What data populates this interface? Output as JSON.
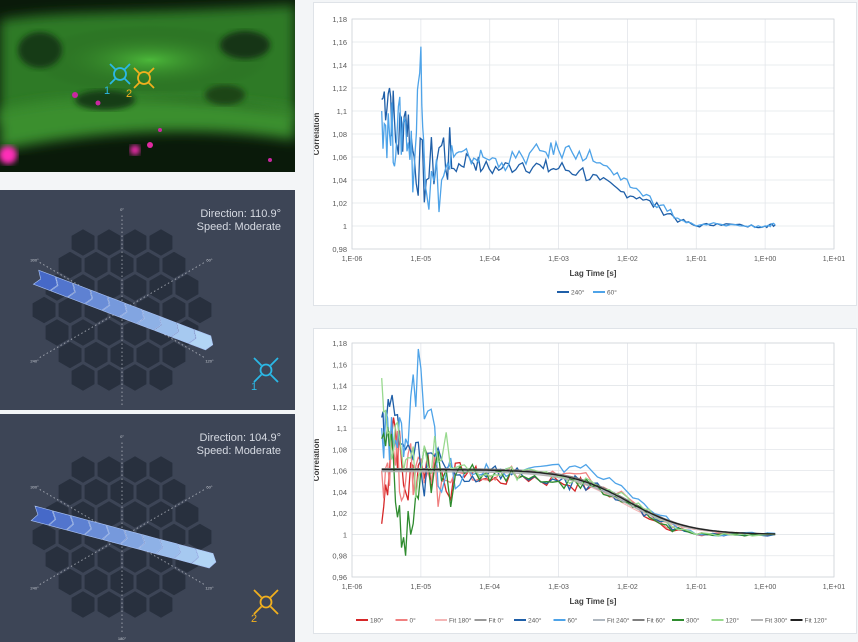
{
  "microscopy": {
    "marker1_label": "1",
    "marker2_label": "2",
    "marker1_color": "#2bb8e6",
    "marker2_color": "#f2b01e"
  },
  "direction_panels": [
    {
      "direction_text": "Direction: 110.9°",
      "speed_text": "Speed: Moderate",
      "direction_deg": 110.9,
      "marker_label": "1",
      "marker_color": "#2bb8e6",
      "icon": "crosshair-circle-icon",
      "angle_labels": [
        "0°",
        "60°",
        "120°",
        "180°",
        "240°",
        "300°"
      ]
    },
    {
      "direction_text": "Direction: 104.9°",
      "speed_text": "Speed: Moderate",
      "direction_deg": 104.9,
      "marker_label": "2",
      "marker_color": "#f2b01e",
      "icon": "crosshair-circle-icon",
      "angle_labels": [
        "0°",
        "60°",
        "120°",
        "180°",
        "240°",
        "300°"
      ]
    }
  ],
  "chart_data": [
    {
      "type": "line",
      "xlabel": "Lag Time [s]",
      "ylabel": "Correlation",
      "x_scale": "log",
      "xlim": [
        1e-06,
        10
      ],
      "ylim": [
        0.98,
        1.18
      ],
      "x_tick_labels": [
        "1,E-06",
        "1,E-05",
        "1,E-04",
        "1,E-03",
        "1,E-02",
        "1,E-01",
        "1,E+00",
        "1,E+01"
      ],
      "y_tick_labels": [
        "0,98",
        "1",
        "1,02",
        "1,04",
        "1,06",
        "1,08",
        "1,1",
        "1,12",
        "1,14",
        "1,16",
        "1,18"
      ],
      "grid": true,
      "legend_position": "bottom",
      "series": [
        {
          "name": "240°",
          "color": "#1f5fa8",
          "x": [
            2.7e-06,
            3.5e-06,
            4.5e-06,
            6e-06,
            8e-06,
            1.2e-05,
            2e-05,
            3e-05,
            5e-05,
            8e-05,
            0.00015,
            0.0003,
            0.0006,
            0.001,
            0.002,
            0.004,
            0.008,
            0.015,
            0.03,
            0.06,
            0.1,
            0.2,
            0.5,
            1.0,
            1.4
          ],
          "y": [
            1.11,
            1.12,
            1.07,
            1.1,
            1.06,
            1.04,
            1.07,
            1.05,
            1.06,
            1.05,
            1.05,
            1.055,
            1.05,
            1.05,
            1.048,
            1.04,
            1.03,
            1.025,
            1.015,
            1.005,
            1.0,
            1.002,
            1.0,
            1.0,
            1.001
          ]
        },
        {
          "name": "60°",
          "color": "#4ea3e8",
          "x": [
            2.7e-06,
            3.5e-06,
            4.5e-06,
            6e-06,
            8e-06,
            1e-05,
            1.2e-05,
            2e-05,
            3e-05,
            5e-05,
            8e-05,
            0.00015,
            0.0003,
            0.0006,
            0.001,
            0.002,
            0.004,
            0.008,
            0.015,
            0.03,
            0.06,
            0.1,
            0.2,
            0.5,
            1.0,
            1.4
          ],
          "y": [
            1.1,
            1.08,
            1.08,
            1.09,
            1.05,
            1.156,
            1.03,
            1.04,
            1.06,
            1.06,
            1.06,
            1.055,
            1.06,
            1.065,
            1.066,
            1.065,
            1.055,
            1.04,
            1.03,
            1.018,
            1.005,
            1.0,
            1.002,
            1.0,
            1.0,
            1.001
          ]
        }
      ]
    },
    {
      "type": "line",
      "xlabel": "Lag Time [s]",
      "ylabel": "Correlation",
      "x_scale": "log",
      "xlim": [
        1e-06,
        10
      ],
      "ylim": [
        0.96,
        1.18
      ],
      "x_tick_labels": [
        "1,E-06",
        "1,E-05",
        "1,E-04",
        "1,E-03",
        "1,E-02",
        "1,E-01",
        "1,E+00",
        "1,E+01"
      ],
      "y_tick_labels": [
        "0,96",
        "0,98",
        "1",
        "1,02",
        "1,04",
        "1,06",
        "1,08",
        "1,1",
        "1,12",
        "1,14",
        "1,16",
        "1,18"
      ],
      "grid": true,
      "legend_position": "bottom",
      "series": [
        {
          "name": "180°",
          "color": "#d62728",
          "style": "noisy",
          "x": [
            2.7e-06,
            4e-06,
            6e-06,
            1e-05,
            2e-05,
            5e-05,
            0.0001,
            0.0003,
            0.001,
            0.003,
            0.01,
            0.03,
            0.1,
            0.3,
            1.4
          ],
          "y": [
            1.01,
            1.11,
            1.04,
            1.07,
            1.06,
            1.06,
            1.05,
            1.055,
            1.05,
            1.045,
            1.03,
            1.01,
            1.0,
            1.001,
            1.0
          ]
        },
        {
          "name": "0°",
          "color": "#f08080",
          "style": "noisy",
          "x": [
            2.7e-06,
            4e-06,
            6e-06,
            1e-05,
            2e-05,
            5e-05,
            0.0001,
            0.0003,
            0.001,
            0.003,
            0.01,
            0.03,
            0.1,
            0.3,
            1.4
          ],
          "y": [
            1.06,
            1.08,
            1.05,
            1.07,
            1.05,
            1.06,
            1.055,
            1.06,
            1.055,
            1.05,
            1.035,
            1.012,
            1.0,
            1.0,
            1.0
          ]
        },
        {
          "name": "Fit 180°",
          "color": "#f4b6b6",
          "style": "fit",
          "amplitude": 0.061,
          "tau": 0.008
        },
        {
          "name": "Fit 0°",
          "color": "#999999",
          "style": "fit",
          "amplitude": 0.061,
          "tau": 0.009
        },
        {
          "name": "240°",
          "color": "#1f5fa8",
          "style": "noisy",
          "x": [
            2.7e-06,
            3.5e-06,
            6e-06,
            1e-05,
            2e-05,
            5e-05,
            0.0001,
            0.0003,
            0.001,
            0.003,
            0.01,
            0.03,
            0.1,
            0.3,
            1.4
          ],
          "y": [
            1.11,
            1.12,
            1.08,
            1.06,
            1.07,
            1.05,
            1.06,
            1.055,
            1.05,
            1.048,
            1.03,
            1.012,
            1.0,
            1.0,
            1.0
          ]
        },
        {
          "name": "60°",
          "color": "#4ea3e8",
          "style": "noisy",
          "x": [
            2.7e-06,
            4e-06,
            6e-06,
            1e-05,
            2e-05,
            5e-05,
            0.0001,
            0.0003,
            0.001,
            0.003,
            0.01,
            0.03,
            0.1,
            0.3,
            1.4
          ],
          "y": [
            1.1,
            1.08,
            1.09,
            1.156,
            1.04,
            1.06,
            1.06,
            1.06,
            1.066,
            1.06,
            1.04,
            1.018,
            1.0,
            1.0,
            1.001
          ]
        },
        {
          "name": "Fit 240°",
          "color": "#b0b8c0",
          "style": "fit",
          "amplitude": 0.06,
          "tau": 0.01
        },
        {
          "name": "Fit 60°",
          "color": "#7f7f7f",
          "style": "fit",
          "amplitude": 0.062,
          "tau": 0.011
        },
        {
          "name": "300°",
          "color": "#2e8b2e",
          "style": "noisy",
          "x": [
            2.7e-06,
            4e-06,
            6e-06,
            1e-05,
            2e-05,
            5e-05,
            0.0001,
            0.0003,
            0.001,
            0.003,
            0.01,
            0.03,
            0.1,
            0.3,
            1.4
          ],
          "y": [
            1.09,
            1.07,
            0.98,
            1.06,
            1.05,
            1.06,
            1.05,
            1.055,
            1.05,
            1.045,
            1.03,
            1.01,
            1.0,
            1.0,
            1.0
          ]
        },
        {
          "name": "120°",
          "color": "#98d98e",
          "style": "noisy",
          "x": [
            2.7e-06,
            4e-06,
            6e-06,
            1e-05,
            2e-05,
            5e-05,
            0.0001,
            0.0003,
            0.001,
            0.003,
            0.01,
            0.03,
            0.1,
            0.3,
            1.4
          ],
          "y": [
            1.147,
            1.08,
            1.07,
            1.06,
            1.07,
            1.06,
            1.055,
            1.06,
            1.055,
            1.05,
            1.035,
            1.014,
            1.0,
            1.0,
            1.0
          ]
        },
        {
          "name": "Fit 300°",
          "color": "#b5b5b5",
          "style": "fit",
          "amplitude": 0.059,
          "tau": 0.0095
        },
        {
          "name": "Fit 120°",
          "color": "#222222",
          "style": "fit",
          "amplitude": 0.061,
          "tau": 0.0105
        }
      ]
    }
  ]
}
